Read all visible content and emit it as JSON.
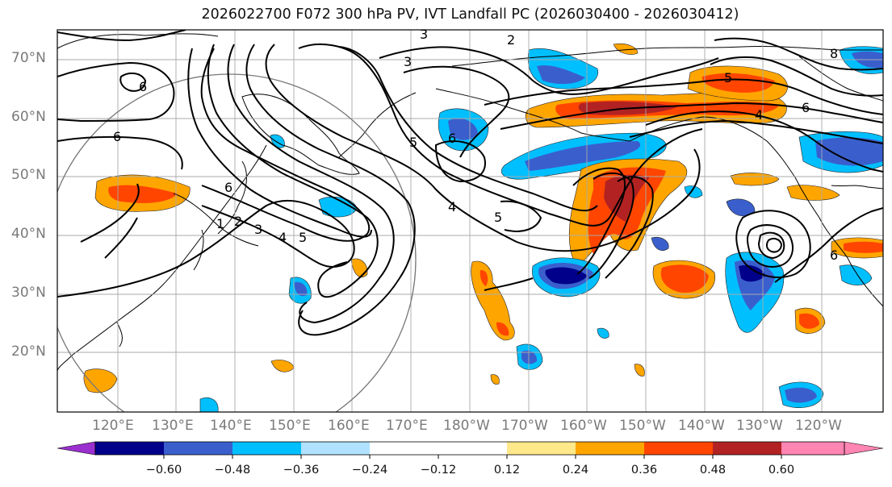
{
  "title": "2026022700 F072 300 hPa PV, IVT Landfall PC (2026030400 - 2026030412)",
  "map": {
    "lat_labels": [
      "70°N",
      "60°N",
      "50°N",
      "40°N",
      "30°N",
      "20°N"
    ],
    "lon_labels": [
      "120°E",
      "130°E",
      "140°E",
      "150°E",
      "160°E",
      "170°E",
      "180°W",
      "170°W",
      "160°W",
      "150°W",
      "140°W",
      "130°W",
      "120°W"
    ],
    "contour_labels": [
      "1",
      "2",
      "3",
      "4",
      "5",
      "6",
      "6",
      "6",
      "3",
      "2",
      "3",
      "5",
      "5",
      "6",
      "8",
      "6",
      "6",
      "4",
      "4",
      "5"
    ],
    "colors": {
      "grid": "#aaaaaa",
      "coast": "#000000",
      "contour": "#000000",
      "circle": "#777777",
      "label": "#7a7a7a"
    }
  },
  "colorbar": {
    "tick_labels": [
      "−0.60",
      "−0.48",
      "−0.36",
      "−0.24",
      "−0.12",
      "0.12",
      "0.24",
      "0.36",
      "0.48",
      "0.60"
    ],
    "colors": [
      "#9b30d0",
      "#00008b",
      "#3a5fcd",
      "#00bfff",
      "#b0e2ff",
      "#ffffff",
      "#ffe88a",
      "#ffa500",
      "#ff4500",
      "#b22222",
      "#ff85b3"
    ]
  }
}
